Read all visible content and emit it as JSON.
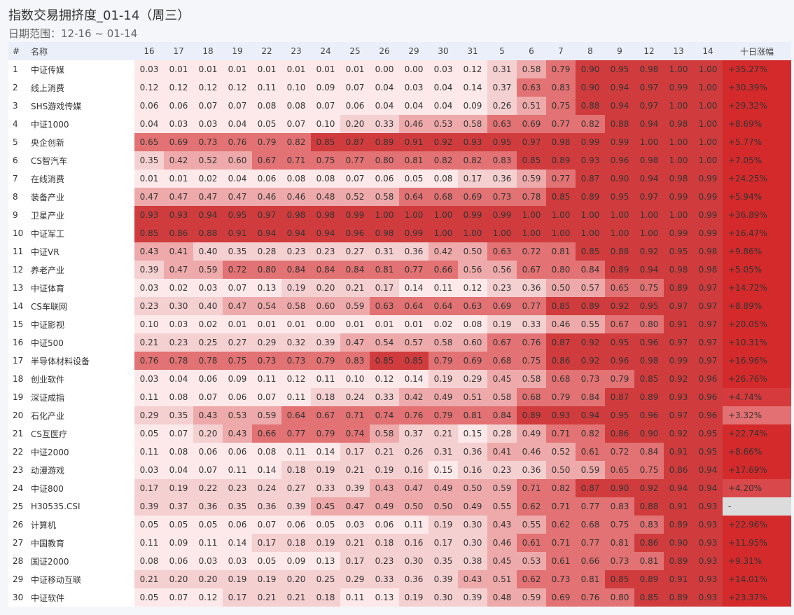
{
  "title": "指数交易拥挤度_01-14（周三）",
  "subtitle": "日期范围：12-16 ~ 01-14",
  "chart_data": {
    "type": "heatmap",
    "header_index": "#",
    "header_name": "名称",
    "header_change": "十日涨幅",
    "columns": [
      "16",
      "17",
      "18",
      "19",
      "22",
      "23",
      "24",
      "25",
      "26",
      "29",
      "30",
      "31",
      "5",
      "6",
      "7",
      "8",
      "9",
      "12",
      "13",
      "14"
    ],
    "color_scale": [
      "#fde9ea",
      "#f5d0d1",
      "#eeaaab",
      "#e27273",
      "#d03c3d"
    ],
    "change_colors": {
      "default": "#d42a2b",
      "none": "#dcdcdc"
    },
    "rows": [
      {
        "name": "中证传媒",
        "values": [
          0.03,
          0.01,
          0.01,
          0.01,
          0.01,
          0.01,
          0.01,
          0.01,
          0.0,
          0.0,
          0.03,
          0.12,
          0.31,
          0.58,
          0.79,
          0.9,
          0.95,
          0.98,
          1.0,
          1.0
        ],
        "change": "+35.27%"
      },
      {
        "name": "线上消费",
        "values": [
          0.12,
          0.12,
          0.12,
          0.12,
          0.11,
          0.1,
          0.09,
          0.07,
          0.04,
          0.03,
          0.04,
          0.14,
          0.37,
          0.63,
          0.83,
          0.9,
          0.94,
          0.97,
          0.99,
          1.0
        ],
        "change": "+30.39%"
      },
      {
        "name": "SHS游戏传媒",
        "values": [
          0.06,
          0.06,
          0.07,
          0.07,
          0.08,
          0.08,
          0.07,
          0.06,
          0.04,
          0.04,
          0.04,
          0.09,
          0.26,
          0.51,
          0.75,
          0.88,
          0.94,
          0.97,
          1.0,
          1.0
        ],
        "change": "+29.32%"
      },
      {
        "name": "中证1000",
        "values": [
          0.04,
          0.03,
          0.03,
          0.04,
          0.05,
          0.07,
          0.1,
          0.2,
          0.33,
          0.46,
          0.53,
          0.58,
          0.63,
          0.69,
          0.77,
          0.82,
          0.88,
          0.94,
          0.98,
          1.0
        ],
        "change": "+8.69%"
      },
      {
        "name": "央企创新",
        "values": [
          0.65,
          0.69,
          0.73,
          0.76,
          0.79,
          0.82,
          0.85,
          0.87,
          0.89,
          0.91,
          0.92,
          0.93,
          0.95,
          0.97,
          0.98,
          0.99,
          0.99,
          1.0,
          1.0,
          1.0
        ],
        "change": "+5.77%"
      },
      {
        "name": "CS智汽车",
        "values": [
          0.35,
          0.42,
          0.52,
          0.6,
          0.67,
          0.71,
          0.75,
          0.77,
          0.8,
          0.81,
          0.82,
          0.82,
          0.83,
          0.85,
          0.89,
          0.93,
          0.96,
          0.98,
          1.0,
          1.0
        ],
        "change": "+7.05%"
      },
      {
        "name": "在线消费",
        "values": [
          0.01,
          0.01,
          0.02,
          0.04,
          0.06,
          0.08,
          0.08,
          0.07,
          0.06,
          0.05,
          0.08,
          0.17,
          0.36,
          0.59,
          0.77,
          0.87,
          0.9,
          0.94,
          0.98,
          0.99
        ],
        "change": "+24.25%"
      },
      {
        "name": "装备产业",
        "values": [
          0.47,
          0.47,
          0.47,
          0.47,
          0.46,
          0.46,
          0.48,
          0.52,
          0.58,
          0.64,
          0.68,
          0.69,
          0.73,
          0.78,
          0.85,
          0.89,
          0.95,
          0.97,
          0.99,
          0.99
        ],
        "change": "+5.94%"
      },
      {
        "name": "卫星产业",
        "values": [
          0.93,
          0.93,
          0.94,
          0.95,
          0.97,
          0.98,
          0.98,
          0.99,
          1.0,
          1.0,
          1.0,
          0.99,
          0.99,
          1.0,
          1.0,
          1.0,
          1.0,
          1.0,
          1.0,
          0.99
        ],
        "change": "+36.89%"
      },
      {
        "name": "中证军工",
        "values": [
          0.85,
          0.86,
          0.88,
          0.91,
          0.94,
          0.94,
          0.94,
          0.96,
          0.98,
          0.99,
          1.0,
          1.0,
          1.0,
          1.0,
          1.0,
          1.0,
          1.0,
          1.0,
          0.99,
          0.99
        ],
        "change": "+16.47%"
      },
      {
        "name": "中证VR",
        "values": [
          0.43,
          0.41,
          0.4,
          0.35,
          0.28,
          0.23,
          0.23,
          0.27,
          0.31,
          0.36,
          0.42,
          0.5,
          0.63,
          0.72,
          0.81,
          0.85,
          0.88,
          0.92,
          0.95,
          0.98
        ],
        "change": "+9.86%"
      },
      {
        "name": "养老产业",
        "values": [
          0.39,
          0.47,
          0.59,
          0.72,
          0.8,
          0.84,
          0.84,
          0.84,
          0.81,
          0.77,
          0.66,
          0.56,
          0.56,
          0.67,
          0.8,
          0.84,
          0.89,
          0.94,
          0.98,
          0.98
        ],
        "change": "+5.05%"
      },
      {
        "name": "中证体育",
        "values": [
          0.03,
          0.02,
          0.03,
          0.07,
          0.13,
          0.19,
          0.2,
          0.21,
          0.17,
          0.14,
          0.11,
          0.12,
          0.23,
          0.36,
          0.5,
          0.57,
          0.65,
          0.75,
          0.89,
          0.97
        ],
        "change": "+14.72%"
      },
      {
        "name": "CS车联网",
        "values": [
          0.23,
          0.3,
          0.4,
          0.47,
          0.54,
          0.58,
          0.6,
          0.59,
          0.63,
          0.64,
          0.64,
          0.63,
          0.69,
          0.77,
          0.85,
          0.89,
          0.92,
          0.95,
          0.97,
          0.97
        ],
        "change": "+8.89%"
      },
      {
        "name": "中证影视",
        "values": [
          0.1,
          0.03,
          0.02,
          0.01,
          0.01,
          0.01,
          0.0,
          0.01,
          0.01,
          0.01,
          0.02,
          0.08,
          0.19,
          0.33,
          0.46,
          0.55,
          0.67,
          0.8,
          0.91,
          0.97
        ],
        "change": "+20.05%"
      },
      {
        "name": "中证500",
        "values": [
          0.21,
          0.23,
          0.25,
          0.27,
          0.29,
          0.32,
          0.39,
          0.47,
          0.54,
          0.57,
          0.58,
          0.6,
          0.67,
          0.76,
          0.87,
          0.92,
          0.95,
          0.96,
          0.97,
          0.97
        ],
        "change": "+10.31%"
      },
      {
        "name": "半导体材料设备",
        "values": [
          0.76,
          0.78,
          0.78,
          0.75,
          0.73,
          0.73,
          0.79,
          0.83,
          0.85,
          0.85,
          0.79,
          0.69,
          0.68,
          0.75,
          0.86,
          0.92,
          0.96,
          0.98,
          0.99,
          0.97
        ],
        "change": "+16.96%"
      },
      {
        "name": "创业软件",
        "values": [
          0.03,
          0.04,
          0.06,
          0.09,
          0.11,
          0.12,
          0.11,
          0.1,
          0.12,
          0.14,
          0.19,
          0.29,
          0.45,
          0.58,
          0.68,
          0.73,
          0.79,
          0.85,
          0.92,
          0.96
        ],
        "change": "+26.76%"
      },
      {
        "name": "深证成指",
        "values": [
          0.11,
          0.08,
          0.07,
          0.06,
          0.07,
          0.11,
          0.18,
          0.24,
          0.33,
          0.42,
          0.49,
          0.51,
          0.58,
          0.68,
          0.79,
          0.84,
          0.87,
          0.89,
          0.93,
          0.96
        ],
        "change": "+4.74%",
        "change_color": "#d63a3c"
      },
      {
        "name": "石化产业",
        "values": [
          0.29,
          0.35,
          0.43,
          0.53,
          0.59,
          0.64,
          0.67,
          0.71,
          0.74,
          0.76,
          0.79,
          0.81,
          0.84,
          0.89,
          0.93,
          0.94,
          0.95,
          0.96,
          0.97,
          0.96
        ],
        "change": "+3.32%",
        "change_color": "#e37072"
      },
      {
        "name": "CS互医疗",
        "values": [
          0.05,
          0.07,
          0.2,
          0.43,
          0.66,
          0.77,
          0.79,
          0.74,
          0.58,
          0.37,
          0.21,
          0.15,
          0.28,
          0.49,
          0.71,
          0.82,
          0.86,
          0.9,
          0.92,
          0.95
        ],
        "change": "+22.74%"
      },
      {
        "name": "中证2000",
        "values": [
          0.11,
          0.08,
          0.06,
          0.06,
          0.08,
          0.11,
          0.14,
          0.17,
          0.21,
          0.26,
          0.31,
          0.36,
          0.41,
          0.46,
          0.52,
          0.61,
          0.72,
          0.84,
          0.91,
          0.95
        ],
        "change": "+8.66%"
      },
      {
        "name": "动漫游戏",
        "values": [
          0.03,
          0.04,
          0.07,
          0.11,
          0.14,
          0.18,
          0.19,
          0.21,
          0.19,
          0.16,
          0.15,
          0.16,
          0.23,
          0.36,
          0.5,
          0.59,
          0.65,
          0.75,
          0.86,
          0.94
        ],
        "change": "+17.69%"
      },
      {
        "name": "中证800",
        "values": [
          0.17,
          0.19,
          0.22,
          0.23,
          0.24,
          0.27,
          0.33,
          0.39,
          0.43,
          0.47,
          0.49,
          0.5,
          0.59,
          0.71,
          0.82,
          0.87,
          0.9,
          0.92,
          0.94,
          0.94
        ],
        "change": "+4.20%",
        "change_color": "#d9484a"
      },
      {
        "name": "H30535.CSI",
        "values": [
          0.39,
          0.37,
          0.36,
          0.35,
          0.36,
          0.39,
          0.45,
          0.47,
          0.49,
          0.5,
          0.5,
          0.49,
          0.55,
          0.62,
          0.71,
          0.77,
          0.83,
          0.88,
          0.91,
          0.93
        ],
        "change": "-",
        "change_color": "#dcdcdc"
      },
      {
        "name": "计算机",
        "values": [
          0.05,
          0.05,
          0.05,
          0.06,
          0.07,
          0.06,
          0.05,
          0.03,
          0.06,
          0.11,
          0.19,
          0.3,
          0.43,
          0.55,
          0.62,
          0.68,
          0.75,
          0.83,
          0.89,
          0.93
        ],
        "change": "+22.96%"
      },
      {
        "name": "中国教育",
        "values": [
          0.11,
          0.09,
          0.11,
          0.14,
          0.17,
          0.18,
          0.19,
          0.21,
          0.18,
          0.16,
          0.17,
          0.3,
          0.46,
          0.61,
          0.71,
          0.77,
          0.81,
          0.86,
          0.9,
          0.93
        ],
        "change": "+11.95%"
      },
      {
        "name": "国证2000",
        "values": [
          0.08,
          0.06,
          0.03,
          0.03,
          0.05,
          0.09,
          0.13,
          0.17,
          0.23,
          0.3,
          0.35,
          0.38,
          0.45,
          0.53,
          0.61,
          0.66,
          0.73,
          0.81,
          0.89,
          0.93
        ],
        "change": "+9.31%"
      },
      {
        "name": "中证移动互联",
        "values": [
          0.21,
          0.2,
          0.2,
          0.19,
          0.19,
          0.2,
          0.25,
          0.29,
          0.33,
          0.36,
          0.39,
          0.43,
          0.51,
          0.62,
          0.73,
          0.81,
          0.85,
          0.89,
          0.91,
          0.93
        ],
        "change": "+14.01%"
      },
      {
        "name": "中证软件",
        "values": [
          0.05,
          0.07,
          0.12,
          0.17,
          0.21,
          0.21,
          0.18,
          0.11,
          0.13,
          0.19,
          0.3,
          0.39,
          0.48,
          0.59,
          0.69,
          0.76,
          0.8,
          0.85,
          0.89,
          0.93
        ],
        "change": "+23.37%"
      }
    ]
  }
}
